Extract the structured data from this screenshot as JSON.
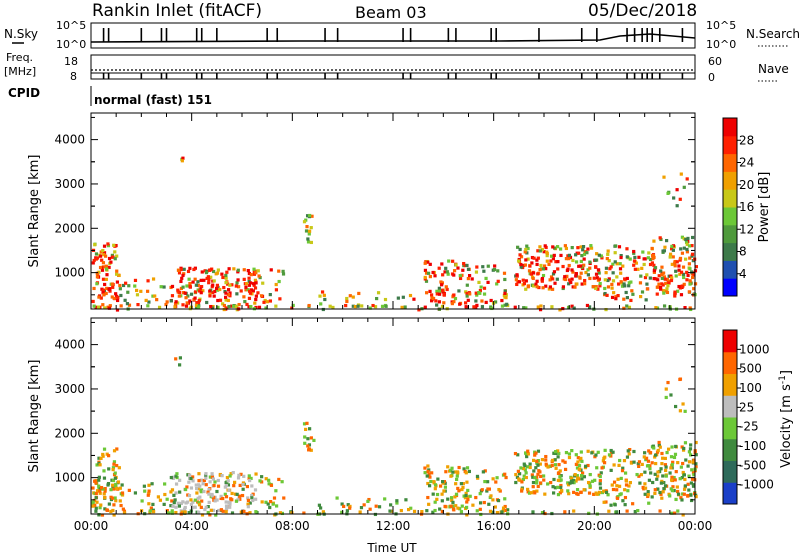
{
  "header": {
    "station": "Rankin Inlet (fitACF)",
    "beam": "Beam 03",
    "date": "05/Dec/2018"
  },
  "summary_panels": {
    "nsky_label": "N.Sky",
    "nsearch_label": "N.Search",
    "nsky_ticks": [
      "10^5",
      "10^0"
    ],
    "nsky_right_ticks": [
      "10^5",
      "10^0"
    ],
    "freq_label": "Freq.",
    "freq_unit": "[MHz]",
    "freq_ticks": [
      "18",
      "8"
    ],
    "nave_label": "Nave",
    "nave_ticks": [
      "60",
      "0"
    ],
    "cpid_label": "CPID",
    "cpid_value": "normal (fast) 151"
  },
  "chart_data": [
    {
      "type": "heatmap",
      "panel": "power",
      "ylabel": "Slant Range [km]",
      "xlabel": "",
      "yticks": [
        "1000",
        "2000",
        "3000",
        "4000"
      ],
      "ylim": [
        180,
        4600
      ],
      "xlim": [
        0,
        24
      ],
      "colorbar_label": "Power [dB]",
      "colorbar_ticks": [
        "4",
        "8",
        "12",
        "16",
        "20",
        "24",
        "28"
      ],
      "colorbar_colors": [
        "#0000ff",
        "#1f4fb0",
        "#3d7a4a",
        "#4f9a3c",
        "#6cc837",
        "#c8c818",
        "#f0a000",
        "#ff6600",
        "#ff2000",
        "#ee0000"
      ]
    },
    {
      "type": "heatmap",
      "panel": "velocity",
      "ylabel": "Slant Range [km]",
      "xlabel": "Time UT",
      "yticks": [
        "1000",
        "2000",
        "3000",
        "4000"
      ],
      "xticks": [
        "00:00",
        "04:00",
        "08:00",
        "12:00",
        "16:00",
        "20:00",
        "00:00"
      ],
      "ylim": [
        180,
        4600
      ],
      "xlim": [
        0,
        24
      ],
      "colorbar_label": "Velocity [m s",
      "colorbar_label_sup": "-1",
      "colorbar_label_end": "]",
      "colorbar_ticks": [
        "1000",
        "500",
        "100",
        "25",
        "-25",
        "-100",
        "-500",
        "-1000"
      ],
      "colorbar_colors": [
        "#1a3fc8",
        "#2e6a5a",
        "#3f8a3e",
        "#6cc837",
        "#bdbdbd",
        "#f0a000",
        "#ff6600",
        "#ee0000"
      ]
    }
  ]
}
